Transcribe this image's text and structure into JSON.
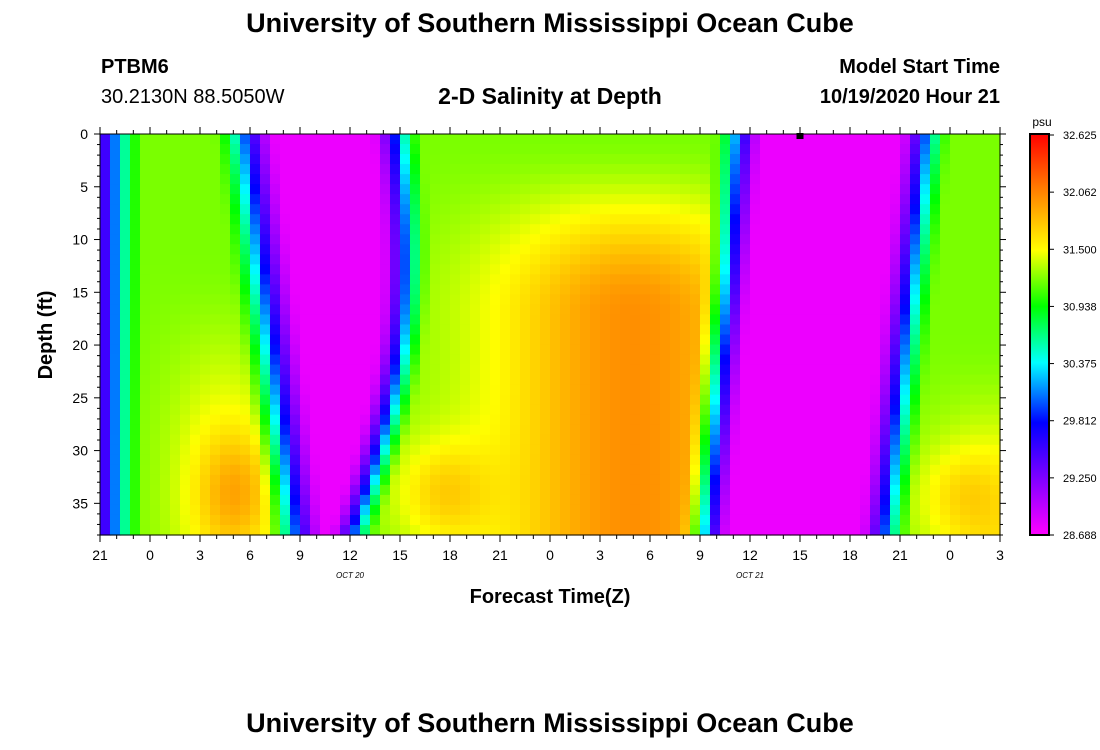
{
  "header": {
    "title": "University of Southern Mississippi Ocean Cube",
    "station_id": "PTBM6",
    "station_coords": "30.2130N 88.5050W",
    "chart_title": "2-D Salinity at Depth",
    "model_label": "Model Start Time",
    "model_time": "10/19/2020 Hour 21"
  },
  "footer": {
    "title": "University of Southern Mississippi Ocean Cube"
  },
  "chart_data": {
    "type": "heatmap",
    "title": "2-D Salinity at Depth",
    "xlabel": "Forecast Time(Z)",
    "ylabel": "Depth (ft)",
    "x_tick_labels": [
      "21",
      "0",
      "3",
      "6",
      "9",
      "12",
      "15",
      "18",
      "21",
      "0",
      "3",
      "6",
      "9",
      "12",
      "15",
      "18",
      "21",
      "0",
      "3"
    ],
    "x_hours_from_start": [
      0,
      3,
      6,
      9,
      12,
      15,
      18,
      21,
      24,
      27,
      30,
      33,
      36,
      39,
      42,
      45,
      48,
      51,
      54
    ],
    "date_labels": [
      {
        "label": "OCT 20",
        "at_hour": 15
      },
      {
        "label": "OCT 21",
        "at_hour": 39
      }
    ],
    "y_ticks": [
      0,
      5,
      10,
      15,
      20,
      25,
      30,
      35
    ],
    "ylim": [
      0,
      38
    ],
    "y_inverted": true,
    "colorbar": {
      "unit": "psu",
      "labels": [
        "32.625",
        "32.062",
        "31.500",
        "30.938",
        "30.375",
        "29.812",
        "29.250",
        "28.688"
      ],
      "min": 28.688,
      "max": 32.625
    },
    "marker": {
      "hour": 42,
      "depth": 0
    },
    "colors": {
      "scale": [
        "#ff00ff",
        "#8000ff",
        "#0000ff",
        "#00ffff",
        "#00ff00",
        "#ffff00",
        "#ff8000",
        "#ff0000"
      ]
    }
  }
}
